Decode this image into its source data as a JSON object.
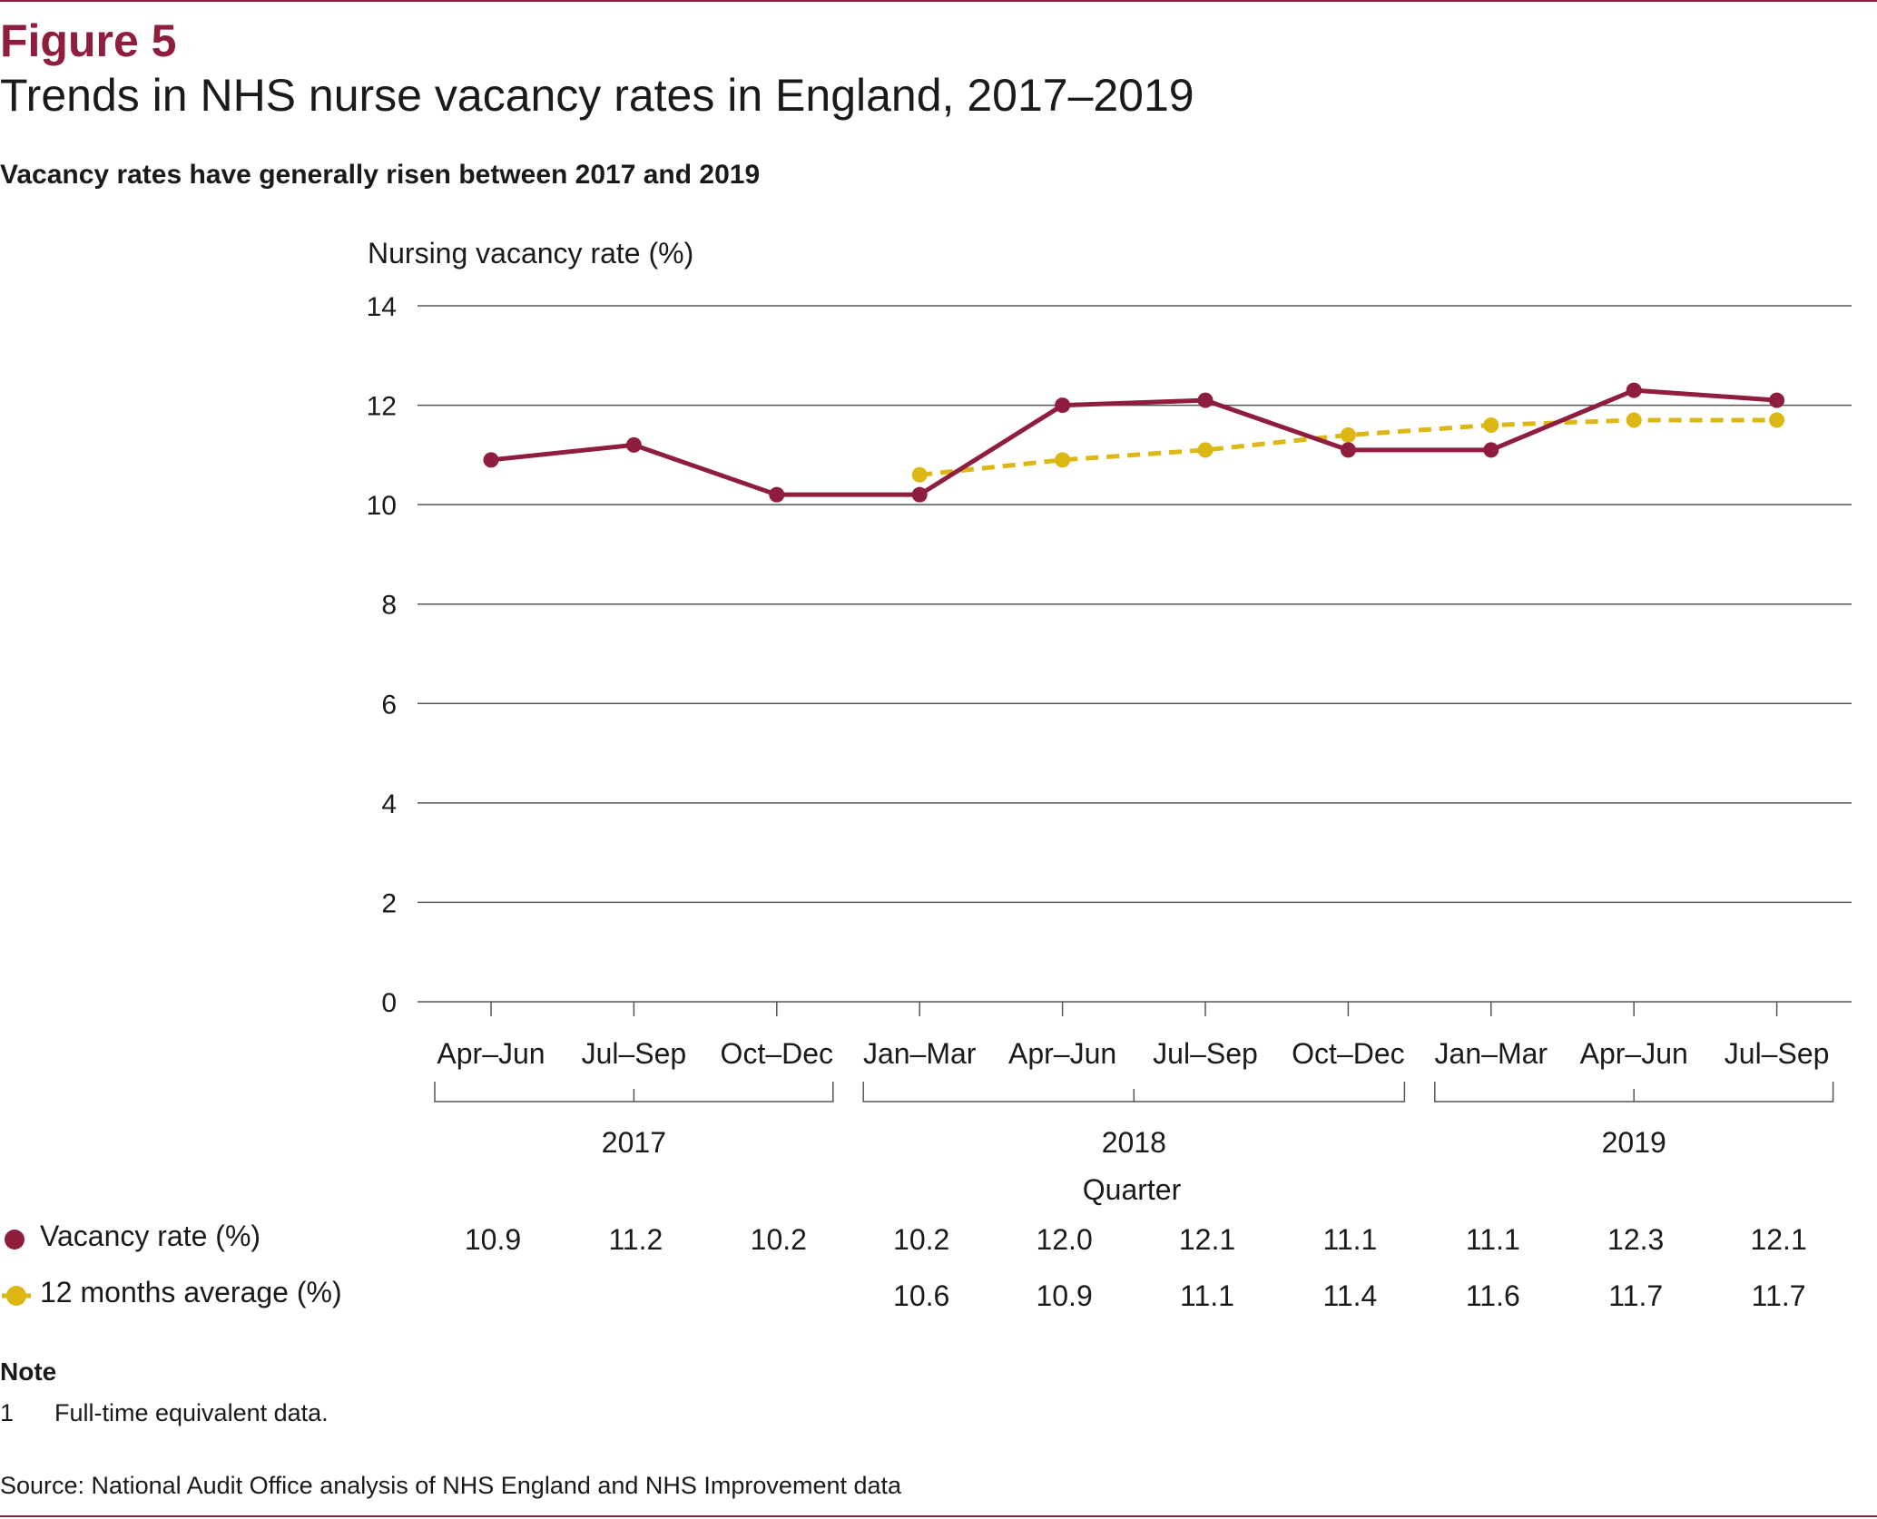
{
  "figure": {
    "label": "Figure 5",
    "title": "Trends in NHS nurse vacancy rates in England, 2017–2019",
    "subtitle": "Vacancy rates have generally risen between 2017 and 2019"
  },
  "colors": {
    "accent": "#8f1d3d",
    "vacancy": "#8f1d3d",
    "average": "#ddb713",
    "grid": "#555555"
  },
  "chart_data": {
    "type": "line",
    "ylabel": "Nursing vacancy rate (%)",
    "xlabel": "Quarter",
    "ylim": [
      0,
      14
    ],
    "yticks": [
      0,
      2,
      4,
      6,
      8,
      10,
      12,
      14
    ],
    "grid": true,
    "categories": [
      "Apr–Jun",
      "Jul–Sep",
      "Oct–Dec",
      "Jan–Mar",
      "Apr–Jun",
      "Jul–Sep",
      "Oct–Dec",
      "Jan–Mar",
      "Apr–Jun",
      "Jul–Sep"
    ],
    "year_groups": [
      {
        "label": "2017",
        "start": 0,
        "end": 2
      },
      {
        "label": "2018",
        "start": 3,
        "end": 6
      },
      {
        "label": "2019",
        "start": 7,
        "end": 9
      }
    ],
    "series": [
      {
        "name": "Vacancy rate (%)",
        "style": "solid",
        "values": [
          10.9,
          11.2,
          10.2,
          10.2,
          12.0,
          12.1,
          11.1,
          11.1,
          12.3,
          12.1
        ]
      },
      {
        "name": "12 months average (%)",
        "style": "dashed",
        "values": [
          null,
          null,
          null,
          10.6,
          10.9,
          11.1,
          11.4,
          11.6,
          11.7,
          11.7
        ]
      }
    ],
    "table_rows": [
      [
        "10.9",
        "11.2",
        "10.2",
        "10.2",
        "12.0",
        "12.1",
        "11.1",
        "11.1",
        "12.3",
        "12.1"
      ],
      [
        "",
        "",
        "",
        "10.6",
        "10.9",
        "11.1",
        "11.4",
        "11.6",
        "11.7",
        "11.7"
      ]
    ]
  },
  "notes": {
    "heading": "Note",
    "items": [
      {
        "num": "1",
        "text": "Full-time equivalent data."
      }
    ]
  },
  "source": "Source: National Audit Office analysis of NHS England and NHS Improvement data"
}
